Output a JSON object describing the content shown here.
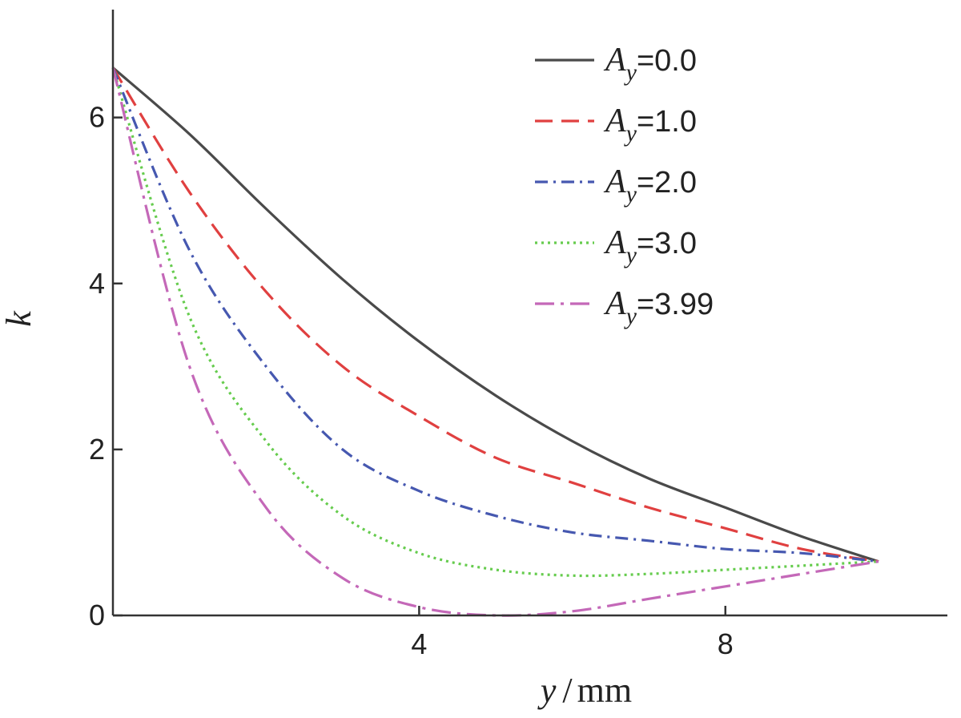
{
  "chart_data": {
    "type": "line",
    "title": "",
    "xlabel": "y/mm",
    "xlabel_var": "y",
    "xlabel_unit": "mm",
    "ylabel": "k",
    "xlim": [
      0,
      10.9
    ],
    "ylim": [
      0,
      7.3
    ],
    "xticks": [
      4,
      8
    ],
    "yticks": [
      0,
      2,
      4,
      6
    ],
    "legend_position": "top-right",
    "series": [
      {
        "name": "A_y=0.0",
        "label_var": "A",
        "label_sub": "y",
        "label_value": "=0.0",
        "color": "#4a4a4a",
        "dash": "solid",
        "x": [
          0,
          1,
          2,
          3,
          4,
          5,
          6,
          7,
          8,
          9,
          10
        ],
        "values": [
          6.6,
          5.8,
          4.9,
          4.05,
          3.3,
          2.65,
          2.1,
          1.65,
          1.3,
          0.95,
          0.65
        ]
      },
      {
        "name": "A_y=1.0",
        "label_var": "A",
        "label_sub": "y",
        "label_value": "=1.0",
        "color": "#e04040",
        "dash": "dashed",
        "x": [
          0,
          1,
          2,
          3,
          4,
          5,
          6,
          7,
          8,
          9,
          10
        ],
        "values": [
          6.6,
          5.1,
          3.9,
          3.0,
          2.4,
          1.9,
          1.6,
          1.3,
          1.05,
          0.8,
          0.65
        ]
      },
      {
        "name": "A_y=2.0",
        "label_var": "A",
        "label_sub": "y",
        "label_value": "=2.0",
        "color": "#4658b0",
        "dash": "dashdot",
        "x": [
          0,
          1,
          2,
          3,
          4,
          5,
          6,
          7,
          8,
          9,
          10
        ],
        "values": [
          6.6,
          4.4,
          3.0,
          2.0,
          1.5,
          1.2,
          1.0,
          0.9,
          0.8,
          0.75,
          0.65
        ]
      },
      {
        "name": "A_y=3.0",
        "label_var": "A",
        "label_sub": "y",
        "label_value": "=3.0",
        "color": "#66cc4e",
        "dash": "dotted",
        "x": [
          0,
          1,
          2,
          3,
          4,
          5,
          6,
          7,
          8,
          9,
          10
        ],
        "values": [
          6.6,
          3.6,
          2.1,
          1.2,
          0.75,
          0.55,
          0.48,
          0.5,
          0.55,
          0.6,
          0.65
        ]
      },
      {
        "name": "A_y=3.99",
        "label_var": "A",
        "label_sub": "y",
        "label_value": "=3.99",
        "color": "#c468b8",
        "dash": "dashdotlong",
        "x": [
          0,
          1,
          2,
          3,
          4,
          5,
          6,
          7,
          8,
          9,
          10
        ],
        "values": [
          6.6,
          3.0,
          1.3,
          0.45,
          0.1,
          0.0,
          0.05,
          0.2,
          0.35,
          0.5,
          0.65
        ]
      }
    ]
  }
}
